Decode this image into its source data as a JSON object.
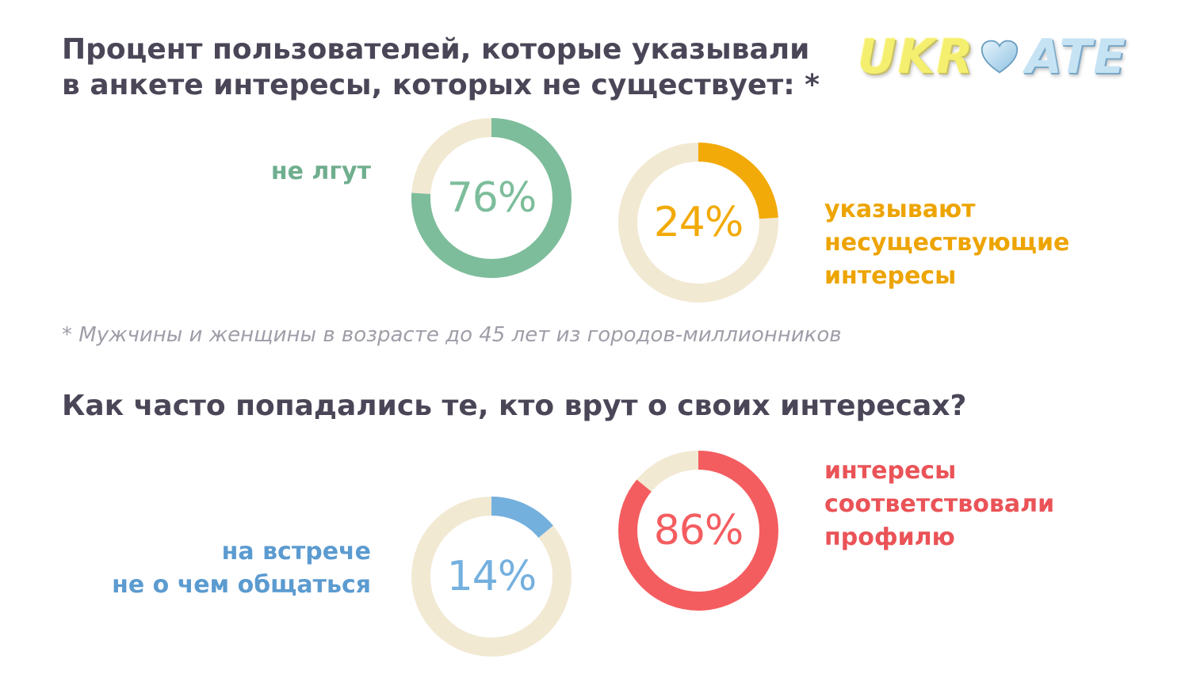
{
  "logo": {
    "part1": "UKR",
    "part2": "ATE"
  },
  "section1": {
    "title": "Процент пользователей, которые указывали в анкете интересы, которых не существует: *",
    "footnote": "* Мужчины и женщины в возрасте до 45 лет из городов-миллионников"
  },
  "section2": {
    "title": "Как часто попадались те, кто врут о своих интересах?"
  },
  "colors": {
    "track": "#f2e9d3",
    "green": "#7dbd9b",
    "orange": "#f2aa08",
    "blue": "#74b0de",
    "red": "#f45d60",
    "title": "#4b4657"
  },
  "chart_data": [
    {
      "type": "pie",
      "style": "donut",
      "value": 76,
      "display": "76%",
      "label_lines": [
        "не лгут"
      ],
      "color": "#7dbd9b",
      "label_color": "#6fae8e"
    },
    {
      "type": "pie",
      "style": "donut",
      "value": 24,
      "display": "24%",
      "label_lines": [
        "указывают",
        "несуществующие",
        "интересы"
      ],
      "color": "#f2aa08",
      "label_color": "#eda400"
    },
    {
      "type": "pie",
      "style": "donut",
      "value": 14,
      "display": "14%",
      "label_lines": [
        "на встрече",
        "не о чем общаться"
      ],
      "color": "#74b0de",
      "label_color": "#5b9bd0"
    },
    {
      "type": "pie",
      "style": "donut",
      "value": 86,
      "display": "86%",
      "label_lines": [
        "интересы",
        "соответствовали",
        "профилю"
      ],
      "color": "#f45d60",
      "label_color": "#ea5357"
    }
  ]
}
